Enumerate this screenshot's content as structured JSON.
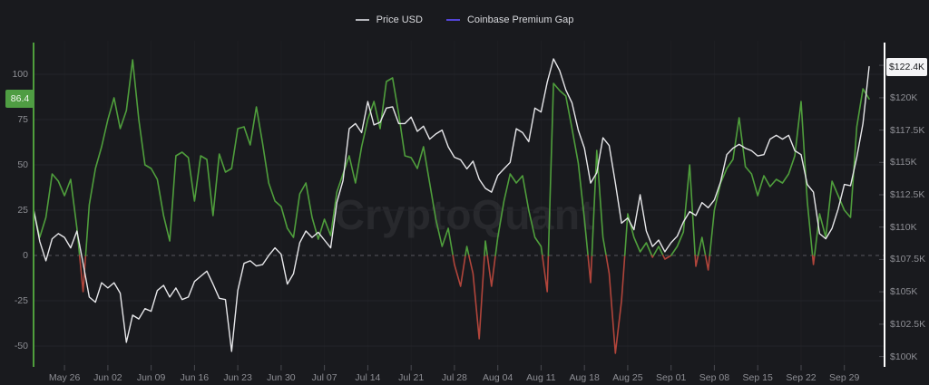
{
  "watermark": "CryptoQuant",
  "legend": [
    {
      "label": "Price USD",
      "color": "#b5b6bc"
    },
    {
      "label": "Coinbase Premium Gap",
      "color": "#5344d6"
    }
  ],
  "colors": {
    "background": "#191a1e",
    "price_line": "#e7e7ea",
    "premium_positive": "#4f9e3c",
    "premium_negative": "#b1453b",
    "left_axis_line": "#4f9e3c",
    "right_axis_line": "#ffffff",
    "grid": "#232429",
    "zero_line": "#56575d",
    "tick_mark": "#4a4b51",
    "label_text": "#8e8f95"
  },
  "left_badge": {
    "label": "86.4",
    "value": 86.4
  },
  "right_badge": {
    "label": "$122.4K",
    "value": 122.4
  },
  "chart_data": {
    "type": "line",
    "title": "",
    "xlabel": "",
    "ylabel_left": "Coinbase Premium Gap",
    "ylabel_right": "Price USD",
    "grid": true,
    "legend_position": "top-center",
    "premium_axis": {
      "min": -61.5,
      "max": 118.5,
      "ticks": [
        100,
        75,
        50,
        25,
        0,
        -25,
        -50
      ],
      "tick_labels": [
        "100",
        "75",
        "50",
        "25",
        "0",
        "-25",
        "-50"
      ]
    },
    "price_axis": {
      "min": 99.2,
      "max": 124.4,
      "unit": "K USD",
      "ticks": [
        122.5,
        120,
        117.5,
        115,
        112.5,
        110,
        107.5,
        105,
        102.5,
        100
      ],
      "tick_labels": [
        "$122.5K",
        "$120K",
        "$117.5K",
        "$115K",
        "$112.5K",
        "$110K",
        "$107.5K",
        "$105K",
        "$102.5K",
        "$100K"
      ]
    },
    "x_tick_indices": [
      5,
      12,
      19,
      26,
      33,
      40,
      47,
      54,
      61,
      68,
      75,
      82,
      89,
      96,
      103,
      110,
      117,
      124,
      131
    ],
    "x_tick_labels": [
      "May 26",
      "Jun 02",
      "Jun 09",
      "Jun 16",
      "Jun 23",
      "Jun 30",
      "Jul 07",
      "Jul 14",
      "Jul 21",
      "Jul 28",
      "Aug 04",
      "Aug 11",
      "Aug 18",
      "Aug 25",
      "Sep 01",
      "Sep 08",
      "Sep 15",
      "Sep 22",
      "Sep 29"
    ],
    "dates": [
      "May 21",
      "May 22",
      "May 23",
      "May 24",
      "May 25",
      "May 26",
      "May 27",
      "May 28",
      "May 29",
      "May 30",
      "May 31",
      "Jun 01",
      "Jun 02",
      "Jun 03",
      "Jun 04",
      "Jun 05",
      "Jun 06",
      "Jun 07",
      "Jun 08",
      "Jun 09",
      "Jun 10",
      "Jun 11",
      "Jun 12",
      "Jun 13",
      "Jun 14",
      "Jun 15",
      "Jun 16",
      "Jun 17",
      "Jun 18",
      "Jun 19",
      "Jun 20",
      "Jun 21",
      "Jun 22",
      "Jun 23",
      "Jun 24",
      "Jun 25",
      "Jun 26",
      "Jun 27",
      "Jun 28",
      "Jun 29",
      "Jun 30",
      "Jul 01",
      "Jul 02",
      "Jul 03",
      "Jul 04",
      "Jul 05",
      "Jul 06",
      "Jul 07",
      "Jul 08",
      "Jul 09",
      "Jul 10",
      "Jul 11",
      "Jul 12",
      "Jul 13",
      "Jul 14",
      "Jul 15",
      "Jul 16",
      "Jul 17",
      "Jul 18",
      "Jul 19",
      "Jul 20",
      "Jul 21",
      "Jul 22",
      "Jul 23",
      "Jul 24",
      "Jul 25",
      "Jul 26",
      "Jul 27",
      "Jul 28",
      "Jul 29",
      "Jul 30",
      "Jul 31",
      "Aug 01",
      "Aug 02",
      "Aug 03",
      "Aug 04",
      "Aug 05",
      "Aug 06",
      "Aug 07",
      "Aug 08",
      "Aug 09",
      "Aug 10",
      "Aug 11",
      "Aug 12",
      "Aug 13",
      "Aug 14",
      "Aug 15",
      "Aug 16",
      "Aug 17",
      "Aug 18",
      "Aug 19",
      "Aug 20",
      "Aug 21",
      "Aug 22",
      "Aug 23",
      "Aug 24",
      "Aug 25",
      "Aug 26",
      "Aug 27",
      "Aug 28",
      "Aug 29",
      "Aug 30",
      "Aug 31",
      "Sep 01",
      "Sep 02",
      "Sep 03",
      "Sep 04",
      "Sep 05",
      "Sep 06",
      "Sep 07",
      "Sep 08",
      "Sep 09",
      "Sep 10",
      "Sep 11",
      "Sep 12",
      "Sep 13",
      "Sep 14",
      "Sep 15",
      "Sep 16",
      "Sep 17",
      "Sep 18",
      "Sep 19",
      "Sep 20",
      "Sep 21",
      "Sep 22",
      "Sep 23",
      "Sep 24",
      "Sep 25",
      "Sep 26",
      "Sep 27",
      "Sep 28",
      "Sep 29",
      "Sep 30",
      "Oct 01",
      "Oct 02",
      "Oct 03"
    ],
    "series": [
      {
        "name": "Price USD",
        "axis": "price",
        "unit": "$K",
        "values": [
          111.4,
          108.9,
          107.4,
          109.1,
          109.5,
          109.2,
          108.4,
          109.7,
          107.2,
          104.6,
          104.2,
          105.7,
          105.3,
          105.7,
          104.9,
          101.1,
          103.2,
          102.9,
          103.7,
          103.5,
          105.1,
          105.5,
          104.6,
          105.3,
          104.4,
          104.6,
          105.8,
          106.2,
          106.6,
          105.6,
          104.5,
          104.4,
          100.4,
          105.1,
          107.2,
          107.4,
          107.0,
          107.1,
          107.8,
          108.4,
          107.9,
          105.6,
          106.4,
          108.8,
          109.7,
          109.2,
          109.6,
          109.0,
          108.4,
          111.9,
          113.6,
          117.6,
          118.0,
          117.3,
          119.7,
          117.9,
          118.1,
          119.2,
          119.3,
          118.0,
          118.0,
          118.5,
          117.4,
          117.8,
          116.8,
          117.2,
          117.5,
          116.2,
          115.4,
          115.2,
          114.5,
          115.1,
          113.7,
          113.0,
          112.7,
          114.0,
          114.5,
          115.0,
          117.6,
          117.3,
          116.6,
          119.2,
          118.9,
          121.2,
          123.0,
          122.1,
          120.6,
          119.6,
          117.5,
          116.1,
          113.4,
          114.2,
          116.9,
          116.3,
          113.4,
          110.3,
          110.7,
          109.8,
          112.5,
          109.7,
          108.5,
          109.0,
          108.1,
          108.8,
          109.3,
          110.4,
          111.2,
          110.9,
          111.9,
          111.5,
          112.1,
          113.5,
          115.6,
          116.1,
          116.4,
          116.1,
          115.9,
          115.5,
          115.6,
          116.8,
          117.1,
          116.8,
          117.1,
          115.9,
          115.6,
          113.3,
          112.7,
          109.5,
          109.1,
          109.9,
          111.4,
          113.3,
          113.2,
          115.4,
          118.0,
          122.4
        ]
      },
      {
        "name": "Coinbase Premium Gap",
        "axis": "premium",
        "unit": "",
        "values": [
          25,
          10,
          21,
          45,
          41,
          33,
          42,
          15,
          -20,
          28,
          48,
          60,
          75,
          87,
          70,
          80,
          108,
          75,
          50,
          48,
          42,
          22,
          8,
          55,
          57,
          54,
          30,
          55,
          53,
          22,
          56,
          46,
          48,
          70,
          71,
          61,
          82,
          62,
          40,
          30,
          27,
          15,
          10,
          34,
          40,
          21,
          9,
          20,
          11,
          35,
          45,
          55,
          40,
          60,
          75,
          85,
          70,
          96,
          98,
          78,
          55,
          54,
          48,
          60,
          40,
          20,
          5,
          15,
          -5,
          -17,
          5,
          -10,
          -46,
          8,
          -17,
          10,
          30,
          45,
          40,
          44,
          25,
          10,
          5,
          -20,
          95,
          91,
          88,
          70,
          51,
          20,
          -15,
          58,
          10,
          -10,
          -54,
          -25,
          23,
          10,
          2,
          7,
          -1,
          5,
          -2,
          0,
          5,
          13,
          50,
          -6,
          10,
          -8,
          25,
          40,
          48,
          53,
          76,
          49,
          45,
          33,
          44,
          38,
          42,
          40,
          45,
          55,
          85,
          30,
          -5,
          23,
          10,
          41,
          33,
          25,
          21,
          71,
          92,
          86.4
        ]
      }
    ]
  }
}
